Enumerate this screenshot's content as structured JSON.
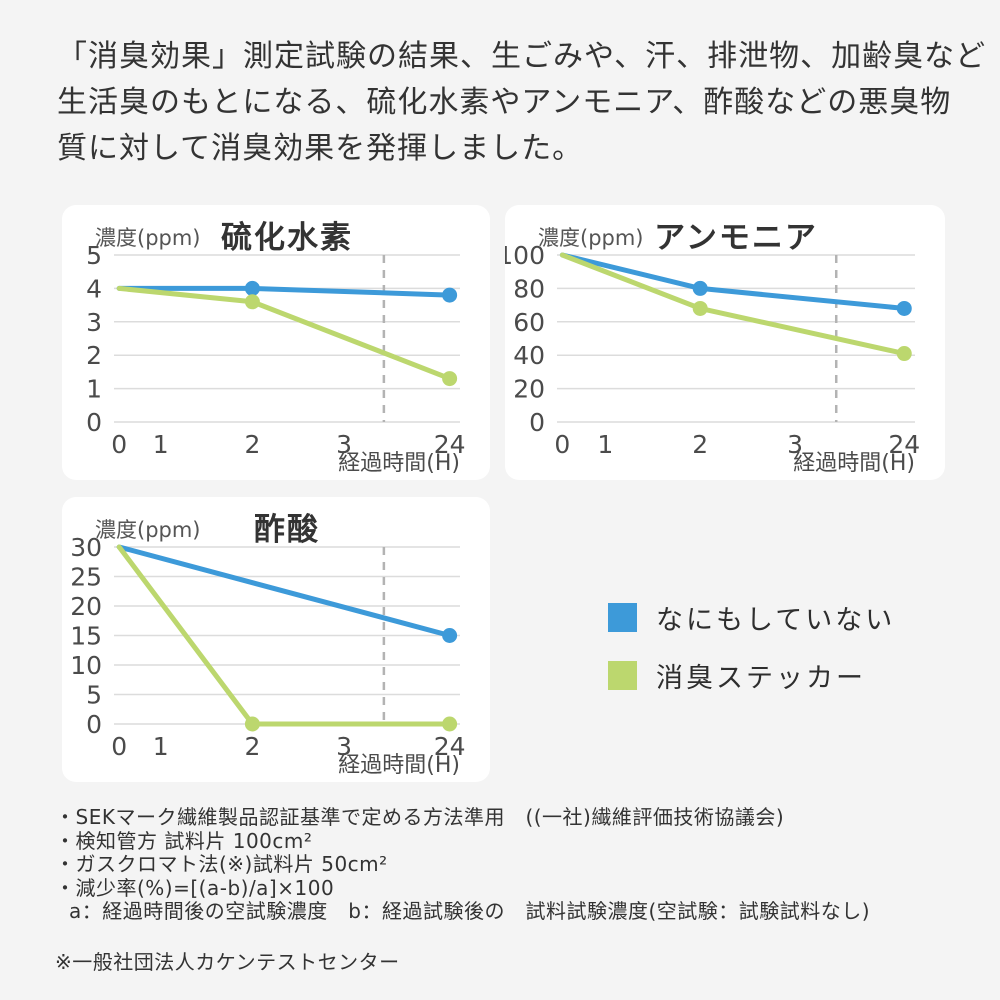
{
  "page": {
    "background": "#f4f4f4",
    "card_background": "#ffffff"
  },
  "colors": {
    "blue": "#3D9AD9",
    "green": "#BCD76E"
  },
  "header": {
    "lines": [
      "「消臭効果」測定試験の結果、生ごみや、汗、排泄物、加齢臭など",
      "生活臭のもとになる、硫化水素やアンモニア、酢酸などの悪臭物",
      "質に対して消臭効果を発揮しました。"
    ]
  },
  "legend": {
    "items": [
      {
        "label": "なにもしていない",
        "color": "blue"
      },
      {
        "label": "消臭ステッカー",
        "color": "green"
      }
    ]
  },
  "chart_data": [
    {
      "type": "line",
      "title": "硫化水素",
      "y_axis_label": "濃度(ppm)",
      "x_axis_label": "経過時間(H)",
      "y_ticks": [
        5,
        4,
        3,
        2,
        1,
        0
      ],
      "ylim": [
        0,
        5
      ],
      "x_ticks": [
        "0",
        "1",
        "2",
        "3",
        "24"
      ],
      "x_positions": [
        0.015,
        0.135,
        0.4,
        0.665,
        0.97
      ],
      "dashed_line_x_fraction": 0.78,
      "grid": true,
      "series": [
        {
          "name": "なにもしていない",
          "color": "blue",
          "points": [
            [
              0,
              4,
              0
            ],
            [
              2,
              4,
              1
            ],
            [
              24,
              3.8,
              1
            ]
          ]
        },
        {
          "name": "消臭ステッカー",
          "color": "green",
          "points": [
            [
              0,
              4,
              0
            ],
            [
              2,
              3.6,
              1
            ],
            [
              24,
              1.3,
              1
            ]
          ]
        }
      ]
    },
    {
      "type": "line",
      "title": "アンモニア",
      "y_axis_label": "濃度(ppm)",
      "x_axis_label": "経過時間(H)",
      "y_ticks": [
        100,
        80,
        60,
        40,
        20,
        0
      ],
      "ylim": [
        0,
        100
      ],
      "x_ticks": [
        "0",
        "1",
        "2",
        "3",
        "24"
      ],
      "x_positions": [
        0.015,
        0.135,
        0.4,
        0.665,
        0.97
      ],
      "dashed_line_x_fraction": 0.78,
      "grid": true,
      "series": [
        {
          "name": "なにもしていない",
          "color": "blue",
          "points": [
            [
              0,
              100,
              0
            ],
            [
              2,
              80,
              1
            ],
            [
              24,
              68,
              1
            ]
          ]
        },
        {
          "name": "消臭ステッカー",
          "color": "green",
          "points": [
            [
              0,
              100,
              0
            ],
            [
              2,
              68,
              1
            ],
            [
              24,
              41,
              1
            ]
          ]
        }
      ]
    },
    {
      "type": "line",
      "title": "酢酸",
      "y_axis_label": "濃度(ppm)",
      "x_axis_label": "経過時間(H)",
      "y_ticks": [
        30,
        25,
        20,
        15,
        10,
        5,
        0
      ],
      "ylim": [
        0,
        30
      ],
      "x_ticks": [
        "0",
        "1",
        "2",
        "3",
        "24"
      ],
      "x_positions": [
        0.015,
        0.135,
        0.4,
        0.665,
        0.97
      ],
      "dashed_line_x_fraction": 0.78,
      "grid": true,
      "series": [
        {
          "name": "なにもしていない",
          "color": "blue",
          "points": [
            [
              0,
              30,
              0
            ],
            [
              24,
              15,
              1
            ]
          ]
        },
        {
          "name": "消臭ステッカー",
          "color": "green",
          "points": [
            [
              0,
              30,
              0
            ],
            [
              2,
              0,
              1
            ],
            [
              24,
              0,
              1
            ]
          ]
        }
      ]
    }
  ],
  "footnotes": [
    "・SEKマーク繊維製品認証基準で定める方法準用　((一社)繊維評価技術協議会)",
    "・検知管方 試料片 100cm²",
    "・ガスクロマト法(※)試料片 50cm²",
    "・減少率(%)=[(a-b)/a]×100",
    "a：経過時間後の空試験濃度　b：経過試験後の　試料試験濃度(空試験：試験試料なし)"
  ],
  "footnote_note": "※一般社団法人カケンテストセンター"
}
